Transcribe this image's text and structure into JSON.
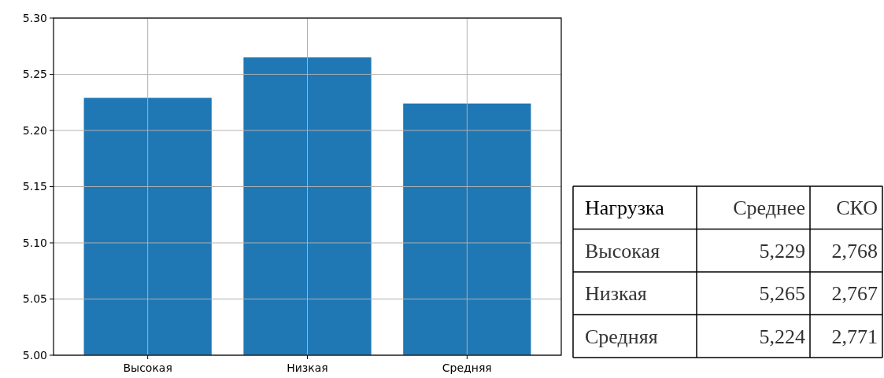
{
  "chart_data": [
    {
      "type": "bar",
      "categories": [
        "Высокая",
        "Низкая",
        "Средняя"
      ],
      "values": [
        5.229,
        5.265,
        5.224
      ],
      "color": "#1f77b4",
      "ylim": [
        5.0,
        5.3
      ],
      "yticks": [
        {
          "value": 5.0,
          "label": "5.00"
        },
        {
          "value": 5.05,
          "label": "5.05"
        },
        {
          "value": 5.1,
          "label": "5.10"
        },
        {
          "value": 5.15,
          "label": "5.15"
        },
        {
          "value": 5.2,
          "label": "5.20"
        },
        {
          "value": 5.25,
          "label": "5.25"
        },
        {
          "value": 5.3,
          "label": "5.30"
        }
      ],
      "grid": true
    },
    {
      "type": "other",
      "annotations": [
        "Нагрузка",
        "Среднее",
        "СКО",
        "Высокая",
        "5,229",
        "2,768",
        "Низкая",
        "5,265",
        "2,767",
        "Средняя",
        "5,224",
        "2,771"
      ]
    }
  ]
}
